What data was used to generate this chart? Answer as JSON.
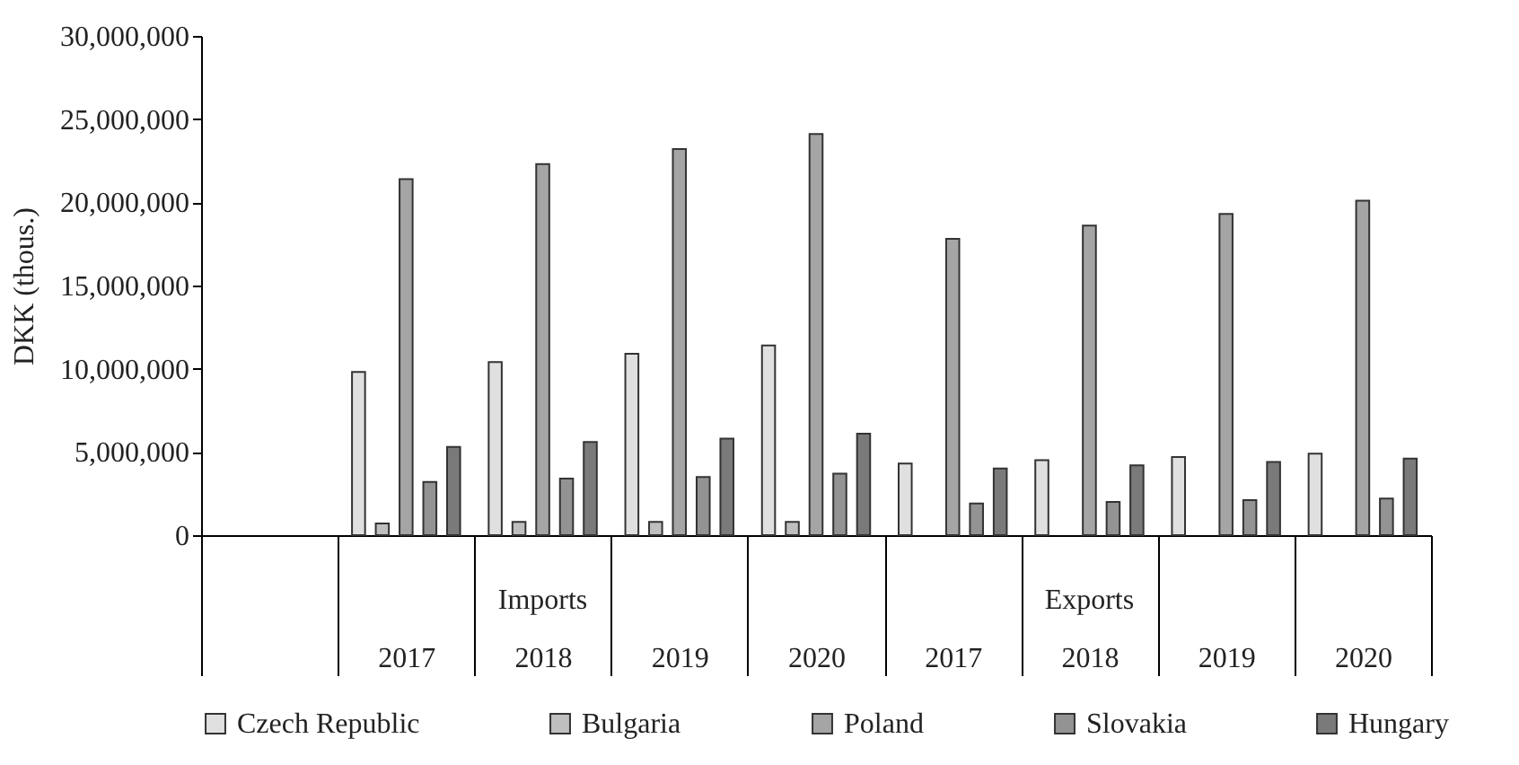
{
  "chart_data": {
    "type": "bar",
    "ylabel": "DKK (thous.)",
    "categories": [
      null,
      "2017",
      "2018",
      "2019",
      "2020",
      "2017",
      "2018",
      "2019",
      "2020"
    ],
    "series": [
      {
        "name": "Czech Republic",
        "color": "#e0e0e0",
        "values": [
          null,
          9800000,
          10400000,
          10900000,
          11400000,
          4300000,
          4500000,
          4700000,
          4900000
        ]
      },
      {
        "name": "Bulgaria",
        "color": "#bfbfbf",
        "values": [
          null,
          700000,
          800000,
          800000,
          800000,
          null,
          null,
          null,
          null
        ]
      },
      {
        "name": "Poland",
        "color": "#a5a5a5",
        "values": [
          null,
          21400000,
          22300000,
          23200000,
          24100000,
          17800000,
          18600000,
          19300000,
          20100000
        ]
      },
      {
        "name": "Slovakia",
        "color": "#939393",
        "values": [
          null,
          3200000,
          3400000,
          3500000,
          3700000,
          1900000,
          2000000,
          2100000,
          2200000
        ]
      },
      {
        "name": "Hungary",
        "color": "#7a7a7a",
        "values": [
          null,
          5300000,
          5600000,
          5800000,
          6100000,
          4000000,
          4200000,
          4400000,
          4600000
        ]
      }
    ],
    "annotations": [
      "Imports",
      "Exports"
    ],
    "ylim": [
      0,
      30000000
    ],
    "yticks": [
      0,
      {
        "value": 5000000,
        "label": "5,000,000"
      },
      {
        "value": 10000000,
        "label": "10,000,000"
      },
      {
        "value": 15000000,
        "label": "15,000,000"
      },
      {
        "value": 20000000,
        "label": "20,000,000"
      },
      {
        "value": 25000000,
        "label": "25,000,000"
      },
      {
        "value": 30000000,
        "label": "30,000,000"
      }
    ],
    "grid": false,
    "legend": "bottom"
  }
}
